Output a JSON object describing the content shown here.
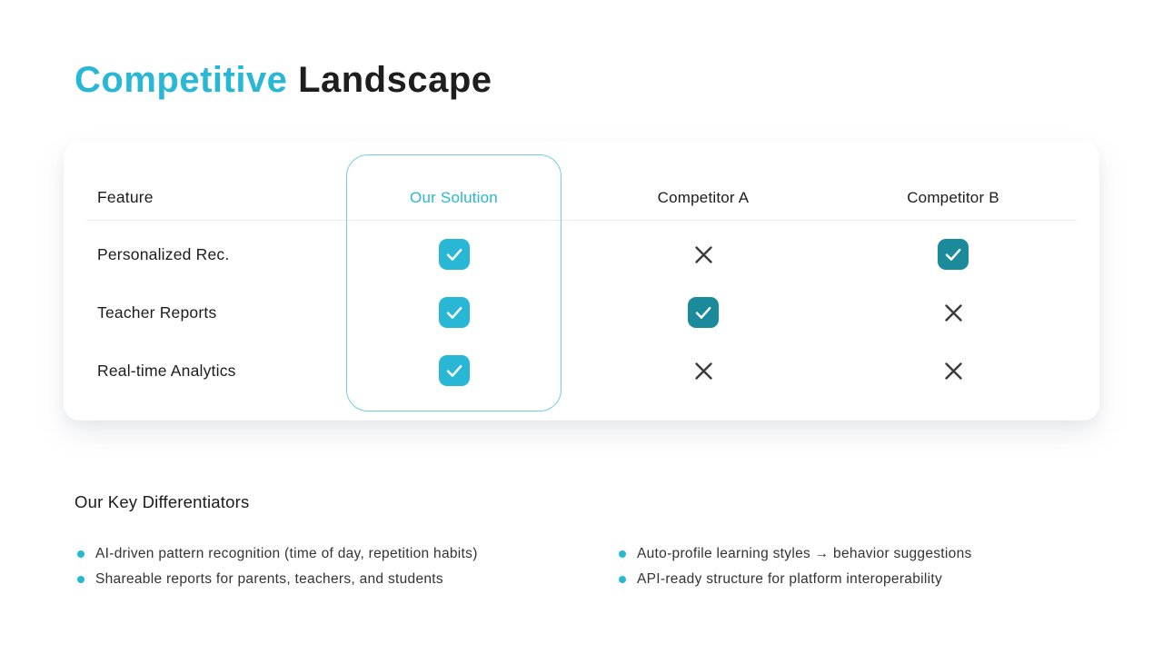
{
  "title": {
    "accent_word": "Competitive",
    "rest_word": "Landscape"
  },
  "comparison_table": {
    "columns": [
      "Feature",
      "Our Solution",
      "Competitor A",
      "Competitor B"
    ],
    "rows": [
      {
        "feature": "Personalized Rec.",
        "cells": [
          "check-accent",
          "cross",
          "check-dark"
        ]
      },
      {
        "feature": "Teacher Reports",
        "cells": [
          "check-accent",
          "check-dark",
          "cross"
        ]
      },
      {
        "feature": "Real-time Analytics",
        "cells": [
          "check-accent",
          "cross",
          "cross"
        ]
      }
    ]
  },
  "differentiators": {
    "heading": "Our Key Differentiators",
    "columns": [
      {
        "items": [
          "AI-driven pattern recognition (time of day, repetition habits)",
          "Shareable reports for parents, teachers, and students"
        ]
      },
      {
        "items": [
          "Auto-profile learning styles → behavior suggestions",
          "API-ready structure for platform interoperability"
        ]
      }
    ]
  },
  "colors": {
    "accent": "#28b7d5",
    "accent_dark": "#1b8a9b",
    "cross": "#3b3b3b",
    "text_dark": "#1e1e1e"
  }
}
